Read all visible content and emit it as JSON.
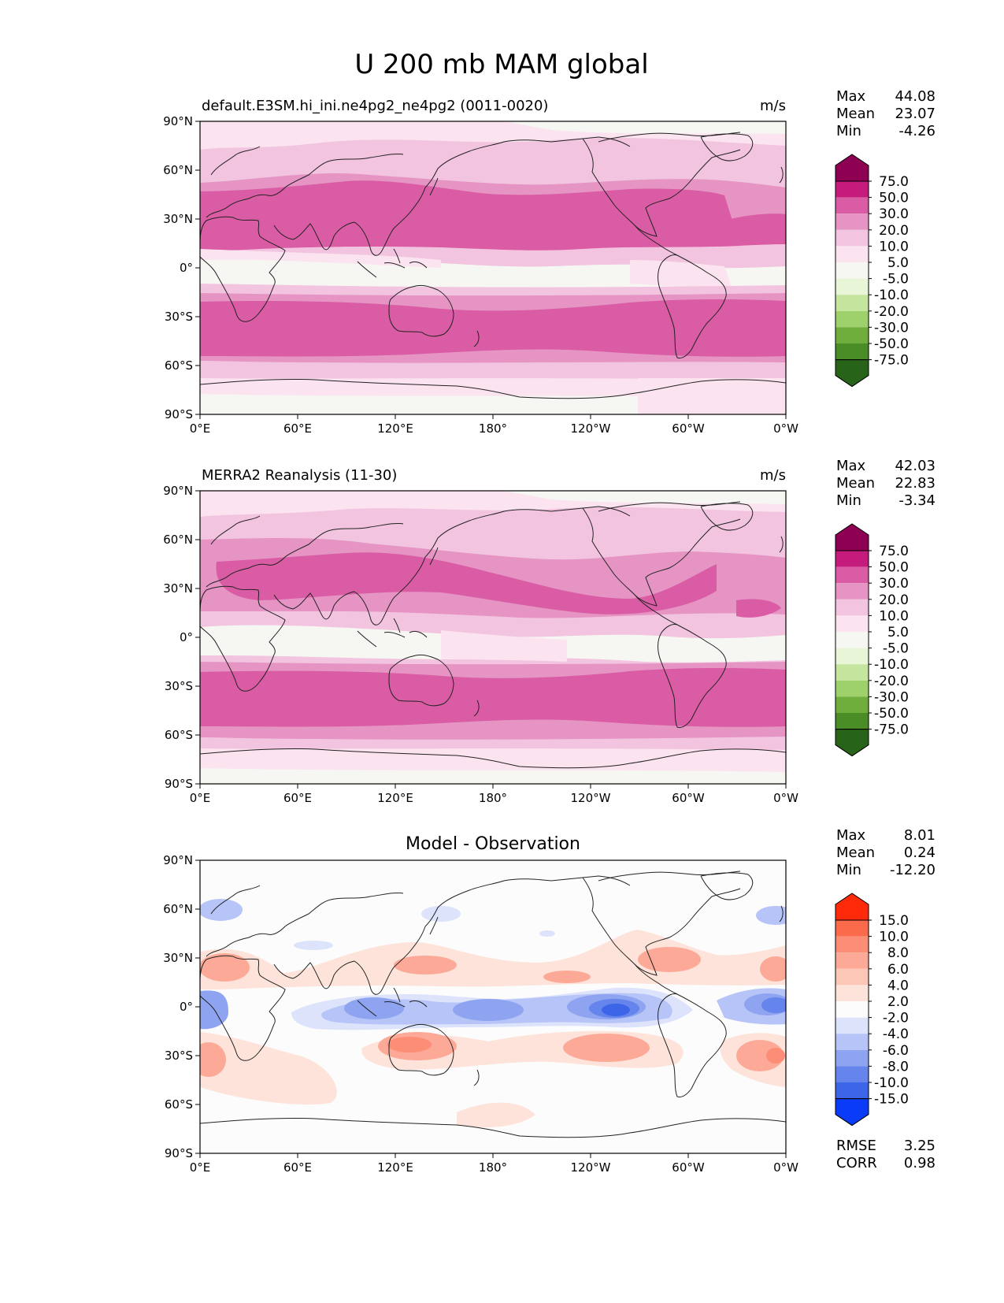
{
  "figure": {
    "title": "U 200 mb MAM global"
  },
  "axes": {
    "lat_ticks": [
      "90°N",
      "60°N",
      "30°N",
      "0°",
      "30°S",
      "60°S",
      "90°S"
    ],
    "lon_ticks": [
      "0°E",
      "60°E",
      "120°E",
      "180°",
      "120°W",
      "60°W",
      "0°W"
    ]
  },
  "panels": [
    {
      "title_left": "default.E3SM.hi_ini.ne4pg2_ne4pg2 (0011-0020)",
      "title_center": "",
      "units": "m/s",
      "stats": [
        {
          "label": "Max",
          "value": "44.08"
        },
        {
          "label": "Mean",
          "value": "23.07"
        },
        {
          "label": "Min",
          "value": "-4.26"
        }
      ],
      "colorbar": {
        "labels": [
          "75.0",
          "50.0",
          "30.0",
          "20.0",
          "10.0",
          "5.0",
          "-5.0",
          "-10.0",
          "-20.0",
          "-30.0",
          "-50.0",
          "-75.0"
        ],
        "colors": [
          "#8e0152",
          "#c51b7d",
          "#d95ca4",
          "#e594c4",
          "#f2c4df",
          "#fbe3f0",
          "#f6f6f3",
          "#e8f5d6",
          "#c5e59f",
          "#9ed06b",
          "#6fad3c",
          "#4a8c25",
          "#276419"
        ]
      }
    },
    {
      "title_left": "MERRA2 Reanalysis (11-30)",
      "title_center": "",
      "units": "m/s",
      "stats": [
        {
          "label": "Max",
          "value": "42.03"
        },
        {
          "label": "Mean",
          "value": "22.83"
        },
        {
          "label": "Min",
          "value": "-3.34"
        }
      ],
      "colorbar": {
        "labels": [
          "75.0",
          "50.0",
          "30.0",
          "20.0",
          "10.0",
          "5.0",
          "-5.0",
          "-10.0",
          "-20.0",
          "-30.0",
          "-50.0",
          "-75.0"
        ],
        "colors": [
          "#8e0152",
          "#c51b7d",
          "#d95ca4",
          "#e594c4",
          "#f2c4df",
          "#fbe3f0",
          "#f6f6f3",
          "#e8f5d6",
          "#c5e59f",
          "#9ed06b",
          "#6fad3c",
          "#4a8c25",
          "#276419"
        ]
      }
    },
    {
      "title_left": "",
      "title_center": "Model - Observation",
      "units": "",
      "stats": [
        {
          "label": "Max",
          "value": "8.01"
        },
        {
          "label": "Mean",
          "value": "0.24"
        },
        {
          "label": "Min",
          "value": "-12.20"
        }
      ],
      "colorbar": {
        "labels": [
          "15.0",
          "10.0",
          "8.0",
          "6.0",
          "4.0",
          "2.0",
          "-2.0",
          "-4.0",
          "-6.0",
          "-8.0",
          "-10.0",
          "-15.0"
        ],
        "colors": [
          "#ff2a0a",
          "#fb6a4a",
          "#fc8d76",
          "#fcaa97",
          "#fdc7b8",
          "#fde3da",
          "#fcfcfc",
          "#dde3fb",
          "#b6c4f7",
          "#8ea4f1",
          "#6585ec",
          "#3d65e7",
          "#0a3cf7"
        ]
      },
      "extra_stats": [
        {
          "label": "RMSE",
          "value": "3.25"
        },
        {
          "label": "CORR",
          "value": "0.98"
        }
      ]
    }
  ]
}
